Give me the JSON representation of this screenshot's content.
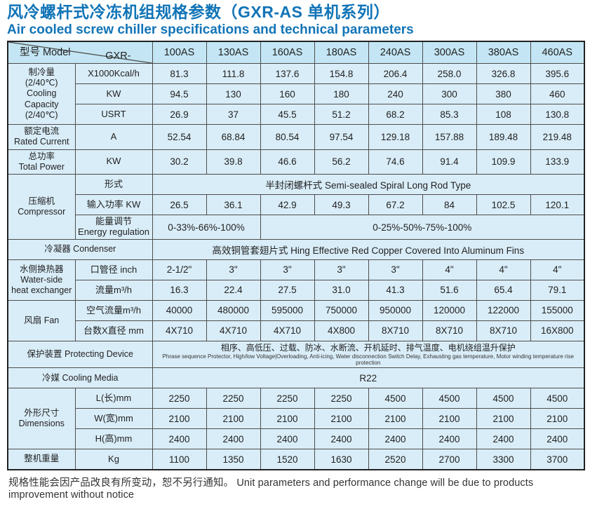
{
  "page": {
    "title_zh": "风冷螺杆式冷冻机组规格参数（GXR-AS 单机系列）",
    "title_en": "Air cooled screw chiller specifications and technical parameters",
    "footnote": "规格性能会因产品改良有所变动，恕不另行通知。  Unit parameters and performance change will be due to products improvement without notice",
    "colors": {
      "accent": "#1174b7",
      "header_bg": "#c4e6f4",
      "cell_bg": "#d9edf8",
      "border": "#4d4d4d"
    }
  },
  "table": {
    "corner_top": "型号 Model",
    "corner_bottom": "GXR-",
    "models": [
      "100AS",
      "130AS",
      "160AS",
      "180AS",
      "240AS",
      "300AS",
      "380AS",
      "460AS"
    ],
    "rows": [
      {
        "name": "cooling-capacity-kcal",
        "head": [
          "制冷量",
          "(2/40℃)",
          "Cooling",
          "Capacity",
          "(2/40℃)"
        ],
        "head_rowspan": 3,
        "sub": [
          "X1000Kcal/h"
        ],
        "values": [
          "81.3",
          "111.8",
          "137.6",
          "154.8",
          "206.4",
          "258.0",
          "326.8",
          "395.6"
        ]
      },
      {
        "name": "cooling-capacity-kw",
        "sub": [
          "KW"
        ],
        "values": [
          "94.5",
          "130",
          "160",
          "180",
          "240",
          "300",
          "380",
          "460"
        ]
      },
      {
        "name": "cooling-capacity-usrt",
        "sub": [
          "USRT"
        ],
        "values": [
          "26.9",
          "37",
          "45.5",
          "51.2",
          "68.2",
          "85.3",
          "108",
          "130.8"
        ]
      },
      {
        "name": "rated-current",
        "head": [
          "额定电流",
          "Rated Current"
        ],
        "head_rowspan": 1,
        "sub": [
          "A"
        ],
        "values": [
          "52.54",
          "68.84",
          "80.54",
          "97.54",
          "129.18",
          "157.88",
          "189.48",
          "219.48"
        ]
      },
      {
        "name": "total-power",
        "head": [
          "总功率",
          "Total Power"
        ],
        "head_rowspan": 1,
        "sub": [
          "KW"
        ],
        "values": [
          "30.2",
          "39.8",
          "46.6",
          "56.2",
          "74.6",
          "91.4",
          "109.9",
          "133.9"
        ]
      },
      {
        "name": "compressor-type",
        "head": [
          "压缩机",
          "Compressor"
        ],
        "head_rowspan": 3,
        "sub": [
          "形式"
        ],
        "spans": [
          {
            "cols": 8,
            "text": "半封闭螺杆式  Semi-sealed Spiral Long Rod Type"
          }
        ]
      },
      {
        "name": "compressor-input-power",
        "sub": [
          "输入功率 KW"
        ],
        "values": [
          "26.5",
          "36.1",
          "42.9",
          "49.3",
          "67.2",
          "84",
          "102.5",
          "120.1"
        ]
      },
      {
        "name": "compressor-energy-regulation",
        "sub": [
          "能量调节",
          "Energy regulation"
        ],
        "sub_small": true,
        "spans": [
          {
            "cols": 2,
            "text": "0-33%-66%-100%"
          },
          {
            "cols": 6,
            "text": "0-25%-50%-75%-100%"
          }
        ]
      },
      {
        "name": "condenser",
        "head": [
          "冷凝器  Condenser"
        ],
        "head_rowspan": 1,
        "head_colspan": 2,
        "spans": [
          {
            "cols": 8,
            "text": "高效铜管套翅片式  Hing Effective Red Copper Covered Into Aluminum Fins"
          }
        ]
      },
      {
        "name": "pipe-diameter",
        "head": [
          "水侧换热器",
          "Water-side",
          "heat exchanger"
        ],
        "head_rowspan": 2,
        "sub": [
          "口管径 inch"
        ],
        "values": [
          "2-1/2\"",
          "3\"",
          "3\"",
          "3\"",
          "3\"",
          "4\"",
          "4\"",
          "4\""
        ]
      },
      {
        "name": "water-flow",
        "sub": [
          "流量m³/h"
        ],
        "values": [
          "16.3",
          "22.4",
          "27.5",
          "31.0",
          "41.3",
          "51.6",
          "65.4",
          "79.1"
        ]
      },
      {
        "name": "fan-air-flow",
        "head": [
          "风扇 Fan"
        ],
        "head_rowspan": 2,
        "sub": [
          "空气流量m³/h"
        ],
        "values": [
          "40000",
          "480000",
          "595000",
          "750000",
          "950000",
          "120000",
          "122000",
          "155000"
        ]
      },
      {
        "name": "fan-count-diameter",
        "sub": [
          "台数X直径 mm"
        ],
        "values": [
          "4X710",
          "4X710",
          "4X710",
          "4X800",
          "8X710",
          "8X710",
          "8X710",
          "16X800"
        ]
      },
      {
        "name": "protecting-device",
        "head": [
          "保护装置 Protecting Device"
        ],
        "head_rowspan": 1,
        "head_colspan": 2,
        "spans": [
          {
            "cols": 8,
            "text": "相序、高低压、过载、防冰、水断流、开机延时、排气温度、电机绕组温升保护",
            "small_text": "Phrase sequence Protector,  High/low Voltage|Overloading,  Anti-icing,  Water disconnection Switch Delay,  Exhausting gas temperature,  Motor winding temperature rise protection"
          }
        ]
      },
      {
        "name": "cooling-media",
        "head": [
          "冷媒  Cooling Media"
        ],
        "head_rowspan": 1,
        "head_colspan": 2,
        "spans": [
          {
            "cols": 8,
            "text": "R22"
          }
        ]
      },
      {
        "name": "dimension-length",
        "head": [
          "外形尺寸",
          "Dimensions"
        ],
        "head_rowspan": 3,
        "sub": [
          "L(长)mm"
        ],
        "values": [
          "2250",
          "2250",
          "2250",
          "2250",
          "4500",
          "4500",
          "4500",
          "4500"
        ]
      },
      {
        "name": "dimension-width",
        "sub": [
          "W(宽)mm"
        ],
        "values": [
          "2100",
          "2100",
          "2100",
          "2100",
          "2100",
          "2100",
          "2100",
          "2100"
        ]
      },
      {
        "name": "dimension-height",
        "sub": [
          "H(高)mm"
        ],
        "values": [
          "2400",
          "2400",
          "2400",
          "2400",
          "2400",
          "2400",
          "2400",
          "2400"
        ]
      },
      {
        "name": "unit-weight",
        "head": [
          "整机重量"
        ],
        "head_rowspan": 1,
        "sub": [
          "Kg"
        ],
        "values": [
          "1100",
          "1350",
          "1520",
          "1630",
          "2520",
          "2700",
          "3300",
          "3700"
        ]
      }
    ]
  }
}
